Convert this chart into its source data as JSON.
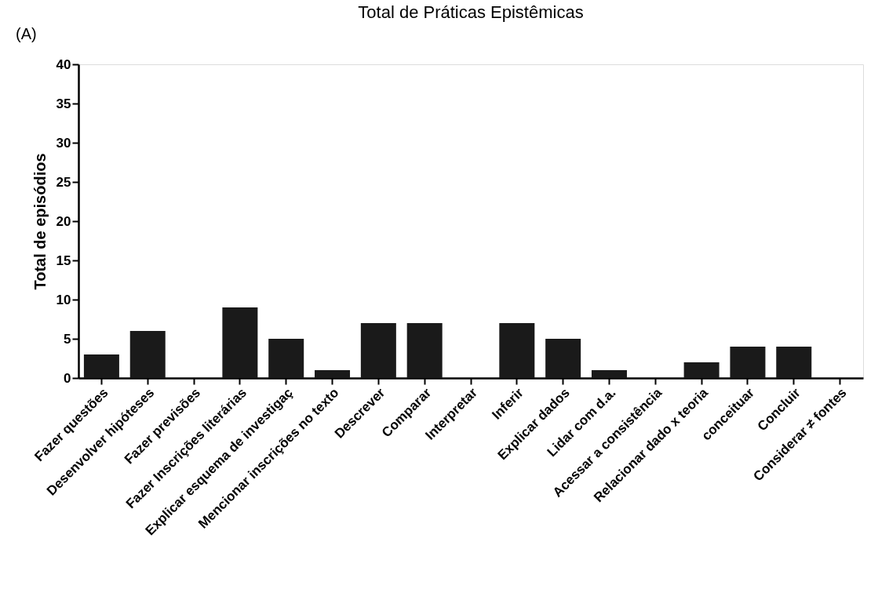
{
  "chart_data": {
    "type": "bar",
    "title": "Total de Práticas Epistêmicas",
    "ylabel": "Total de episódios",
    "annotations": [
      "(A)"
    ],
    "categories": [
      "Fazer questões",
      "Desenvolver hipóteses",
      "Fazer previsões",
      "Fazer Inscrições literárias",
      "Explicar esquema de investigaç",
      "Mencionar inscrições no texto",
      "Descrever",
      "Comparar",
      "Interpretar",
      "Inferir",
      "Explicar dados",
      "Lidar com d.a.",
      "Acessar a consistência",
      "Relacionar dado x teoria",
      "conceituar",
      "Concluir",
      "Considerar ≠ fontes"
    ],
    "values": [
      3,
      6,
      0,
      9,
      5,
      1,
      7,
      7,
      0,
      7,
      5,
      1,
      0,
      2,
      4,
      4,
      0
    ],
    "color": "#1a1a1a",
    "ylim": [
      0,
      40
    ],
    "yticks": [
      0,
      5,
      10,
      15,
      20,
      25,
      30,
      35,
      40
    ],
    "grid": false
  }
}
